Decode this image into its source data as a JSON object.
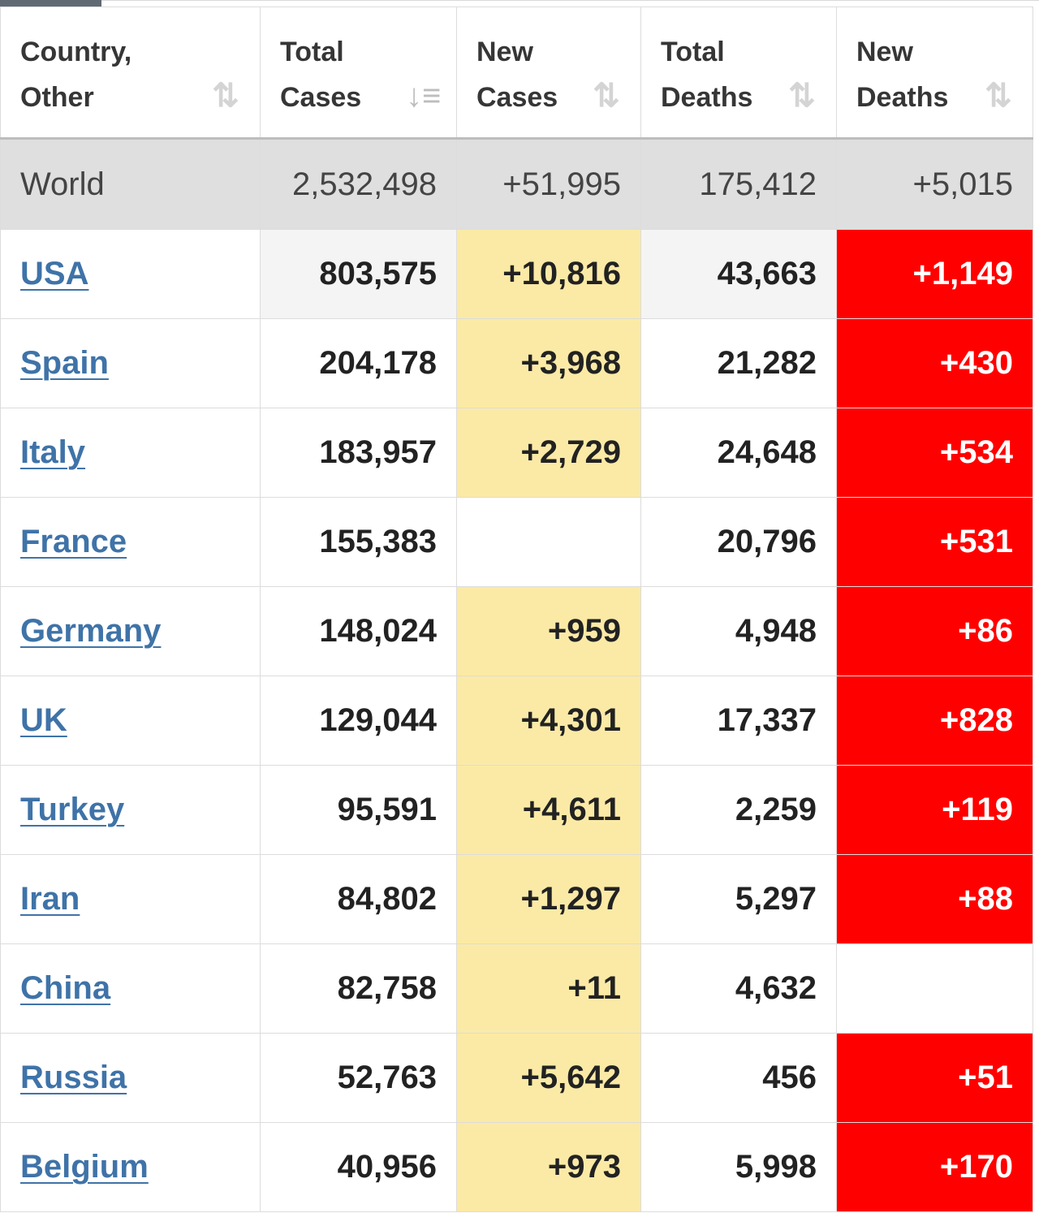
{
  "headers": [
    {
      "label": "Country,\nOther",
      "sort_icon": "sort-arrows-icon",
      "active": false
    },
    {
      "label": "Total\nCases",
      "sort_icon": "sort-desc-icon",
      "active": true
    },
    {
      "label": "New\nCases",
      "sort_icon": "sort-arrows-icon",
      "active": false
    },
    {
      "label": "Total\nDeaths",
      "sort_icon": "sort-arrows-icon",
      "active": false
    },
    {
      "label": "New\nDeaths",
      "sort_icon": "sort-arrows-icon",
      "active": false
    }
  ],
  "colors": {
    "new_cases_highlight": "#fbeaa6",
    "new_deaths_highlight": "#ff0000",
    "link": "#3f73a8",
    "world_row_bg": "#dfdfdf"
  },
  "world": {
    "country": "World",
    "total_cases": "2,532,498",
    "new_cases": "+51,995",
    "total_deaths": "175,412",
    "new_deaths": "+5,015"
  },
  "rows": [
    {
      "country": "USA",
      "total_cases": "803,575",
      "new_cases": "+10,816",
      "total_deaths": "43,663",
      "new_deaths": "+1,149"
    },
    {
      "country": "Spain",
      "total_cases": "204,178",
      "new_cases": "+3,968",
      "total_deaths": "21,282",
      "new_deaths": "+430"
    },
    {
      "country": "Italy",
      "total_cases": "183,957",
      "new_cases": "+2,729",
      "total_deaths": "24,648",
      "new_deaths": "+534"
    },
    {
      "country": "France",
      "total_cases": "155,383",
      "new_cases": "",
      "total_deaths": "20,796",
      "new_deaths": "+531"
    },
    {
      "country": "Germany",
      "total_cases": "148,024",
      "new_cases": "+959",
      "total_deaths": "4,948",
      "new_deaths": "+86"
    },
    {
      "country": "UK",
      "total_cases": "129,044",
      "new_cases": "+4,301",
      "total_deaths": "17,337",
      "new_deaths": "+828"
    },
    {
      "country": "Turkey",
      "total_cases": "95,591",
      "new_cases": "+4,611",
      "total_deaths": "2,259",
      "new_deaths": "+119"
    },
    {
      "country": "Iran",
      "total_cases": "84,802",
      "new_cases": "+1,297",
      "total_deaths": "5,297",
      "new_deaths": "+88"
    },
    {
      "country": "China",
      "total_cases": "82,758",
      "new_cases": "+11",
      "total_deaths": "4,632",
      "new_deaths": ""
    },
    {
      "country": "Russia",
      "total_cases": "52,763",
      "new_cases": "+5,642",
      "total_deaths": "456",
      "new_deaths": "+51"
    },
    {
      "country": "Belgium",
      "total_cases": "40,956",
      "new_cases": "+973",
      "total_deaths": "5,998",
      "new_deaths": "+170"
    }
  ]
}
